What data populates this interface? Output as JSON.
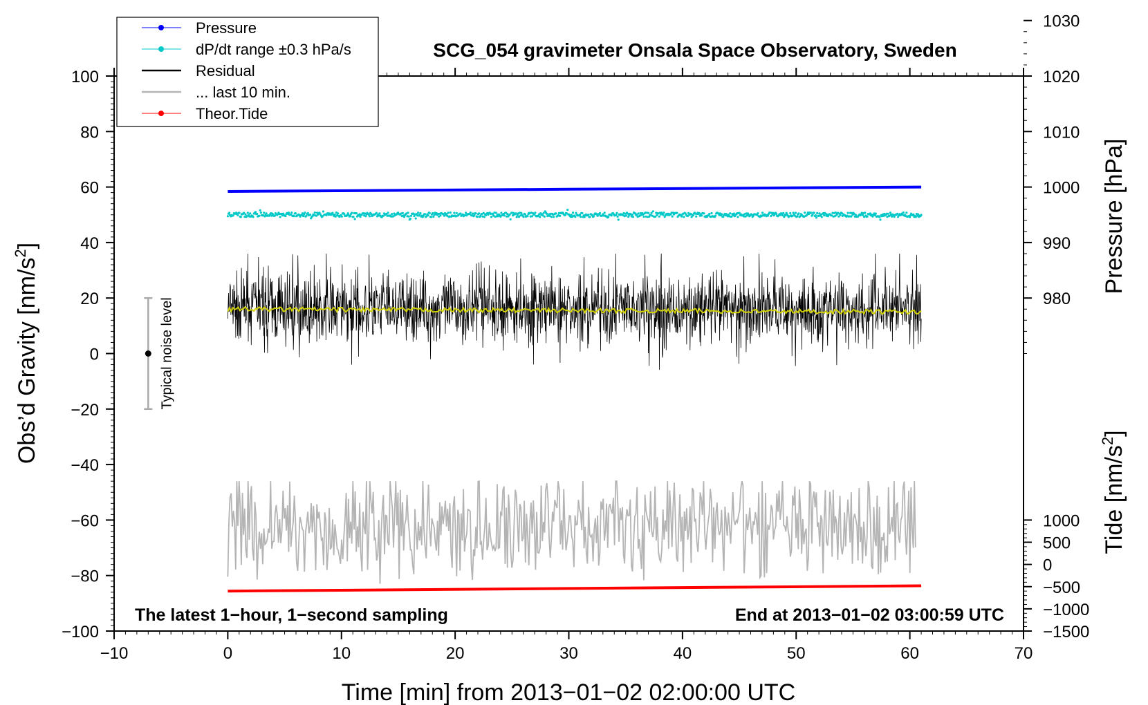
{
  "chart_data": {
    "type": "line",
    "title": "SCG_054 gravimeter Onsala Space Observatory, Sweden",
    "xlabel": "Time [min] from 2013−01−02 02:00:00 UTC",
    "ylabel": "Obs’d Gravity [nm/s²]",
    "ylabel_main": "Obs’d Gravity [nm/s",
    "ylabel_sup": "2",
    "ylabel_end": "]",
    "xlim": [
      -10,
      70
    ],
    "ylim": [
      -100,
      100
    ],
    "x_ticks": [
      "−10",
      "0",
      "10",
      "20",
      "30",
      "40",
      "50",
      "60",
      "70"
    ],
    "y_ticks": [
      "−100",
      "−80",
      "−60",
      "−40",
      "−20",
      "0",
      "20",
      "40",
      "60",
      "80",
      "100"
    ],
    "pressure_axis": {
      "label": "Pressure [hPa]",
      "range": [
        970,
        1030
      ],
      "ticks": [
        "980",
        "990",
        "1000",
        "1010",
        "1020",
        "1030"
      ]
    },
    "tide_axis": {
      "label_main": "Tide [nm/s",
      "label_sup": "2",
      "label_end": "]",
      "range": [
        -1500,
        1000
      ],
      "ticks": [
        "−1500",
        "−1000",
        "−500",
        "0",
        "500",
        "1000"
      ]
    },
    "legend": {
      "position": "top-left",
      "entries": [
        {
          "label": "Pressure",
          "color": "#0000ff",
          "marker": true
        },
        {
          "label": "dP/dt range ±0.3 hPa/s",
          "color": "#00c8c8",
          "marker": true
        },
        {
          "label": "Residual",
          "color": "#000000",
          "marker": false
        },
        {
          "label": "... last 10 min.",
          "color": "#b4b4b4",
          "marker": false
        },
        {
          "label": "Theor.Tide",
          "color": "#ff0000",
          "marker": true
        }
      ]
    },
    "series": [
      {
        "name": "Pressure",
        "axis": "pressure_hPa",
        "x": [
          0,
          30,
          61
        ],
        "values": [
          999.2,
          999.6,
          1000.0
        ],
        "color": "#0000ff"
      },
      {
        "name": "dP/dt range ±0.3 hPa/s",
        "axis": "gravity",
        "x": [
          0,
          61
        ],
        "center": 50,
        "band": 0.8,
        "color": "#00c8c8"
      },
      {
        "name": "Residual",
        "axis": "gravity",
        "x": [
          0,
          61
        ],
        "center": 16,
        "min": -7,
        "max": 36,
        "color": "#000000"
      },
      {
        "name": "Residual (smoothed)",
        "axis": "gravity",
        "x": [
          0,
          61
        ],
        "values": [
          16,
          15
        ],
        "color": "#d2d200"
      },
      {
        "name": "... last 10 min.",
        "axis": "gravity",
        "x": [
          0,
          60.5
        ],
        "center": -62,
        "min": -83,
        "max": -46,
        "color": "#b4b4b4"
      },
      {
        "name": "Theor.Tide",
        "axis": "tide_nm_s2",
        "x": [
          0,
          61
        ],
        "values": [
          -600,
          -480
        ],
        "color": "#ff0000"
      }
    ],
    "noise_bar": {
      "label": "Typical noise level",
      "x": -7,
      "center": 0,
      "range": [
        -20,
        20
      ]
    },
    "annotations": {
      "left": "The latest 1−hour, 1−second sampling",
      "right": "End at 2013−01−02 03:00:59 UTC"
    },
    "grid": false
  }
}
